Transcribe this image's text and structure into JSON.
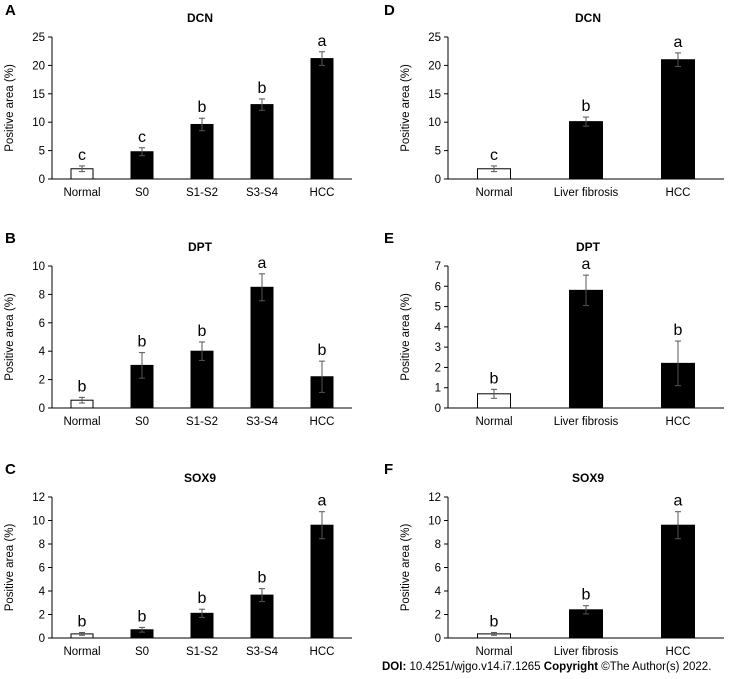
{
  "chart_data": [
    {
      "panel": "A",
      "type": "bar",
      "title": "DCN",
      "xlabel": "",
      "ylabel": "Positive area (%)",
      "ylim": [
        0,
        25
      ],
      "yticks": [
        0,
        5,
        10,
        15,
        20,
        25
      ],
      "categories": [
        "Normal",
        "S0",
        "S1-S2",
        "S3-S4",
        "HCC"
      ],
      "values": [
        1.8,
        4.8,
        9.6,
        13.1,
        21.2
      ],
      "errors": [
        0.5,
        0.7,
        1.1,
        1.0,
        1.2
      ],
      "letters": [
        "c",
        "c",
        "b",
        "b",
        "a"
      ],
      "fills": [
        "#ffffff",
        "#000000",
        "#000000",
        "#000000",
        "#000000"
      ]
    },
    {
      "panel": "B",
      "type": "bar",
      "title": "DPT",
      "xlabel": "",
      "ylabel": "Positive area (%)",
      "ylim": [
        0,
        10
      ],
      "yticks": [
        0,
        2,
        4,
        6,
        8,
        10
      ],
      "categories": [
        "Normal",
        "S0",
        "S1-S2",
        "S3-S4",
        "HCC"
      ],
      "values": [
        0.55,
        3.0,
        4.0,
        8.5,
        2.2
      ],
      "errors": [
        0.2,
        0.9,
        0.65,
        0.95,
        1.1
      ],
      "letters": [
        "b",
        "b",
        "b",
        "a",
        "b"
      ],
      "fills": [
        "#ffffff",
        "#000000",
        "#000000",
        "#000000",
        "#000000"
      ]
    },
    {
      "panel": "C",
      "type": "bar",
      "title": "SOX9",
      "xlabel": "",
      "ylabel": "Positive area (%)",
      "ylim": [
        0,
        12
      ],
      "yticks": [
        0,
        2,
        4,
        6,
        8,
        10,
        12
      ],
      "categories": [
        "Normal",
        "S0",
        "S1-S2",
        "S3-S4",
        "HCC"
      ],
      "values": [
        0.35,
        0.7,
        2.1,
        3.65,
        9.6
      ],
      "errors": [
        0.12,
        0.2,
        0.35,
        0.55,
        1.15
      ],
      "letters": [
        "b",
        "b",
        "b",
        "b",
        "a"
      ],
      "fills": [
        "#ffffff",
        "#000000",
        "#000000",
        "#000000",
        "#000000"
      ]
    },
    {
      "panel": "D",
      "type": "bar",
      "title": "DCN",
      "xlabel": "",
      "ylabel": "Positive area (%)",
      "ylim": [
        0,
        25
      ],
      "yticks": [
        0,
        5,
        10,
        15,
        20,
        25
      ],
      "categories": [
        "Normal",
        "Liver fibrosis",
        "HCC"
      ],
      "values": [
        1.8,
        10.1,
        21.0
      ],
      "errors": [
        0.5,
        0.8,
        1.2
      ],
      "letters": [
        "c",
        "b",
        "a"
      ],
      "fills": [
        "#ffffff",
        "#000000",
        "#000000"
      ]
    },
    {
      "panel": "E",
      "type": "bar",
      "title": "DPT",
      "xlabel": "",
      "ylabel": "Positive area (%)",
      "ylim": [
        0,
        7
      ],
      "yticks": [
        0,
        1,
        2,
        3,
        4,
        5,
        6,
        7
      ],
      "categories": [
        "Normal",
        "Liver fibrosis",
        "HCC"
      ],
      "values": [
        0.7,
        5.8,
        2.2
      ],
      "errors": [
        0.22,
        0.75,
        1.1
      ],
      "letters": [
        "b",
        "a",
        "b"
      ],
      "fills": [
        "#ffffff",
        "#000000",
        "#000000"
      ]
    },
    {
      "panel": "F",
      "type": "bar",
      "title": "SOX9",
      "xlabel": "",
      "ylabel": "Positive area (%)",
      "ylim": [
        0,
        12
      ],
      "yticks": [
        0,
        2,
        4,
        6,
        8,
        10,
        12
      ],
      "categories": [
        "Normal",
        "Liver fibrosis",
        "HCC"
      ],
      "values": [
        0.35,
        2.4,
        9.6
      ],
      "errors": [
        0.12,
        0.35,
        1.15
      ],
      "letters": [
        "b",
        "b",
        "a"
      ],
      "fills": [
        "#ffffff",
        "#000000",
        "#000000"
      ]
    }
  ],
  "footer": {
    "doi_label": "DOI:",
    "doi_value": "10.4251/wjgo.v14.i7.1265",
    "copyright_label": "Copyright",
    "copyright_value": "©The Author(s) 2022."
  },
  "colors": {
    "axis": "#000000",
    "gridline": "#d9d9d9"
  }
}
